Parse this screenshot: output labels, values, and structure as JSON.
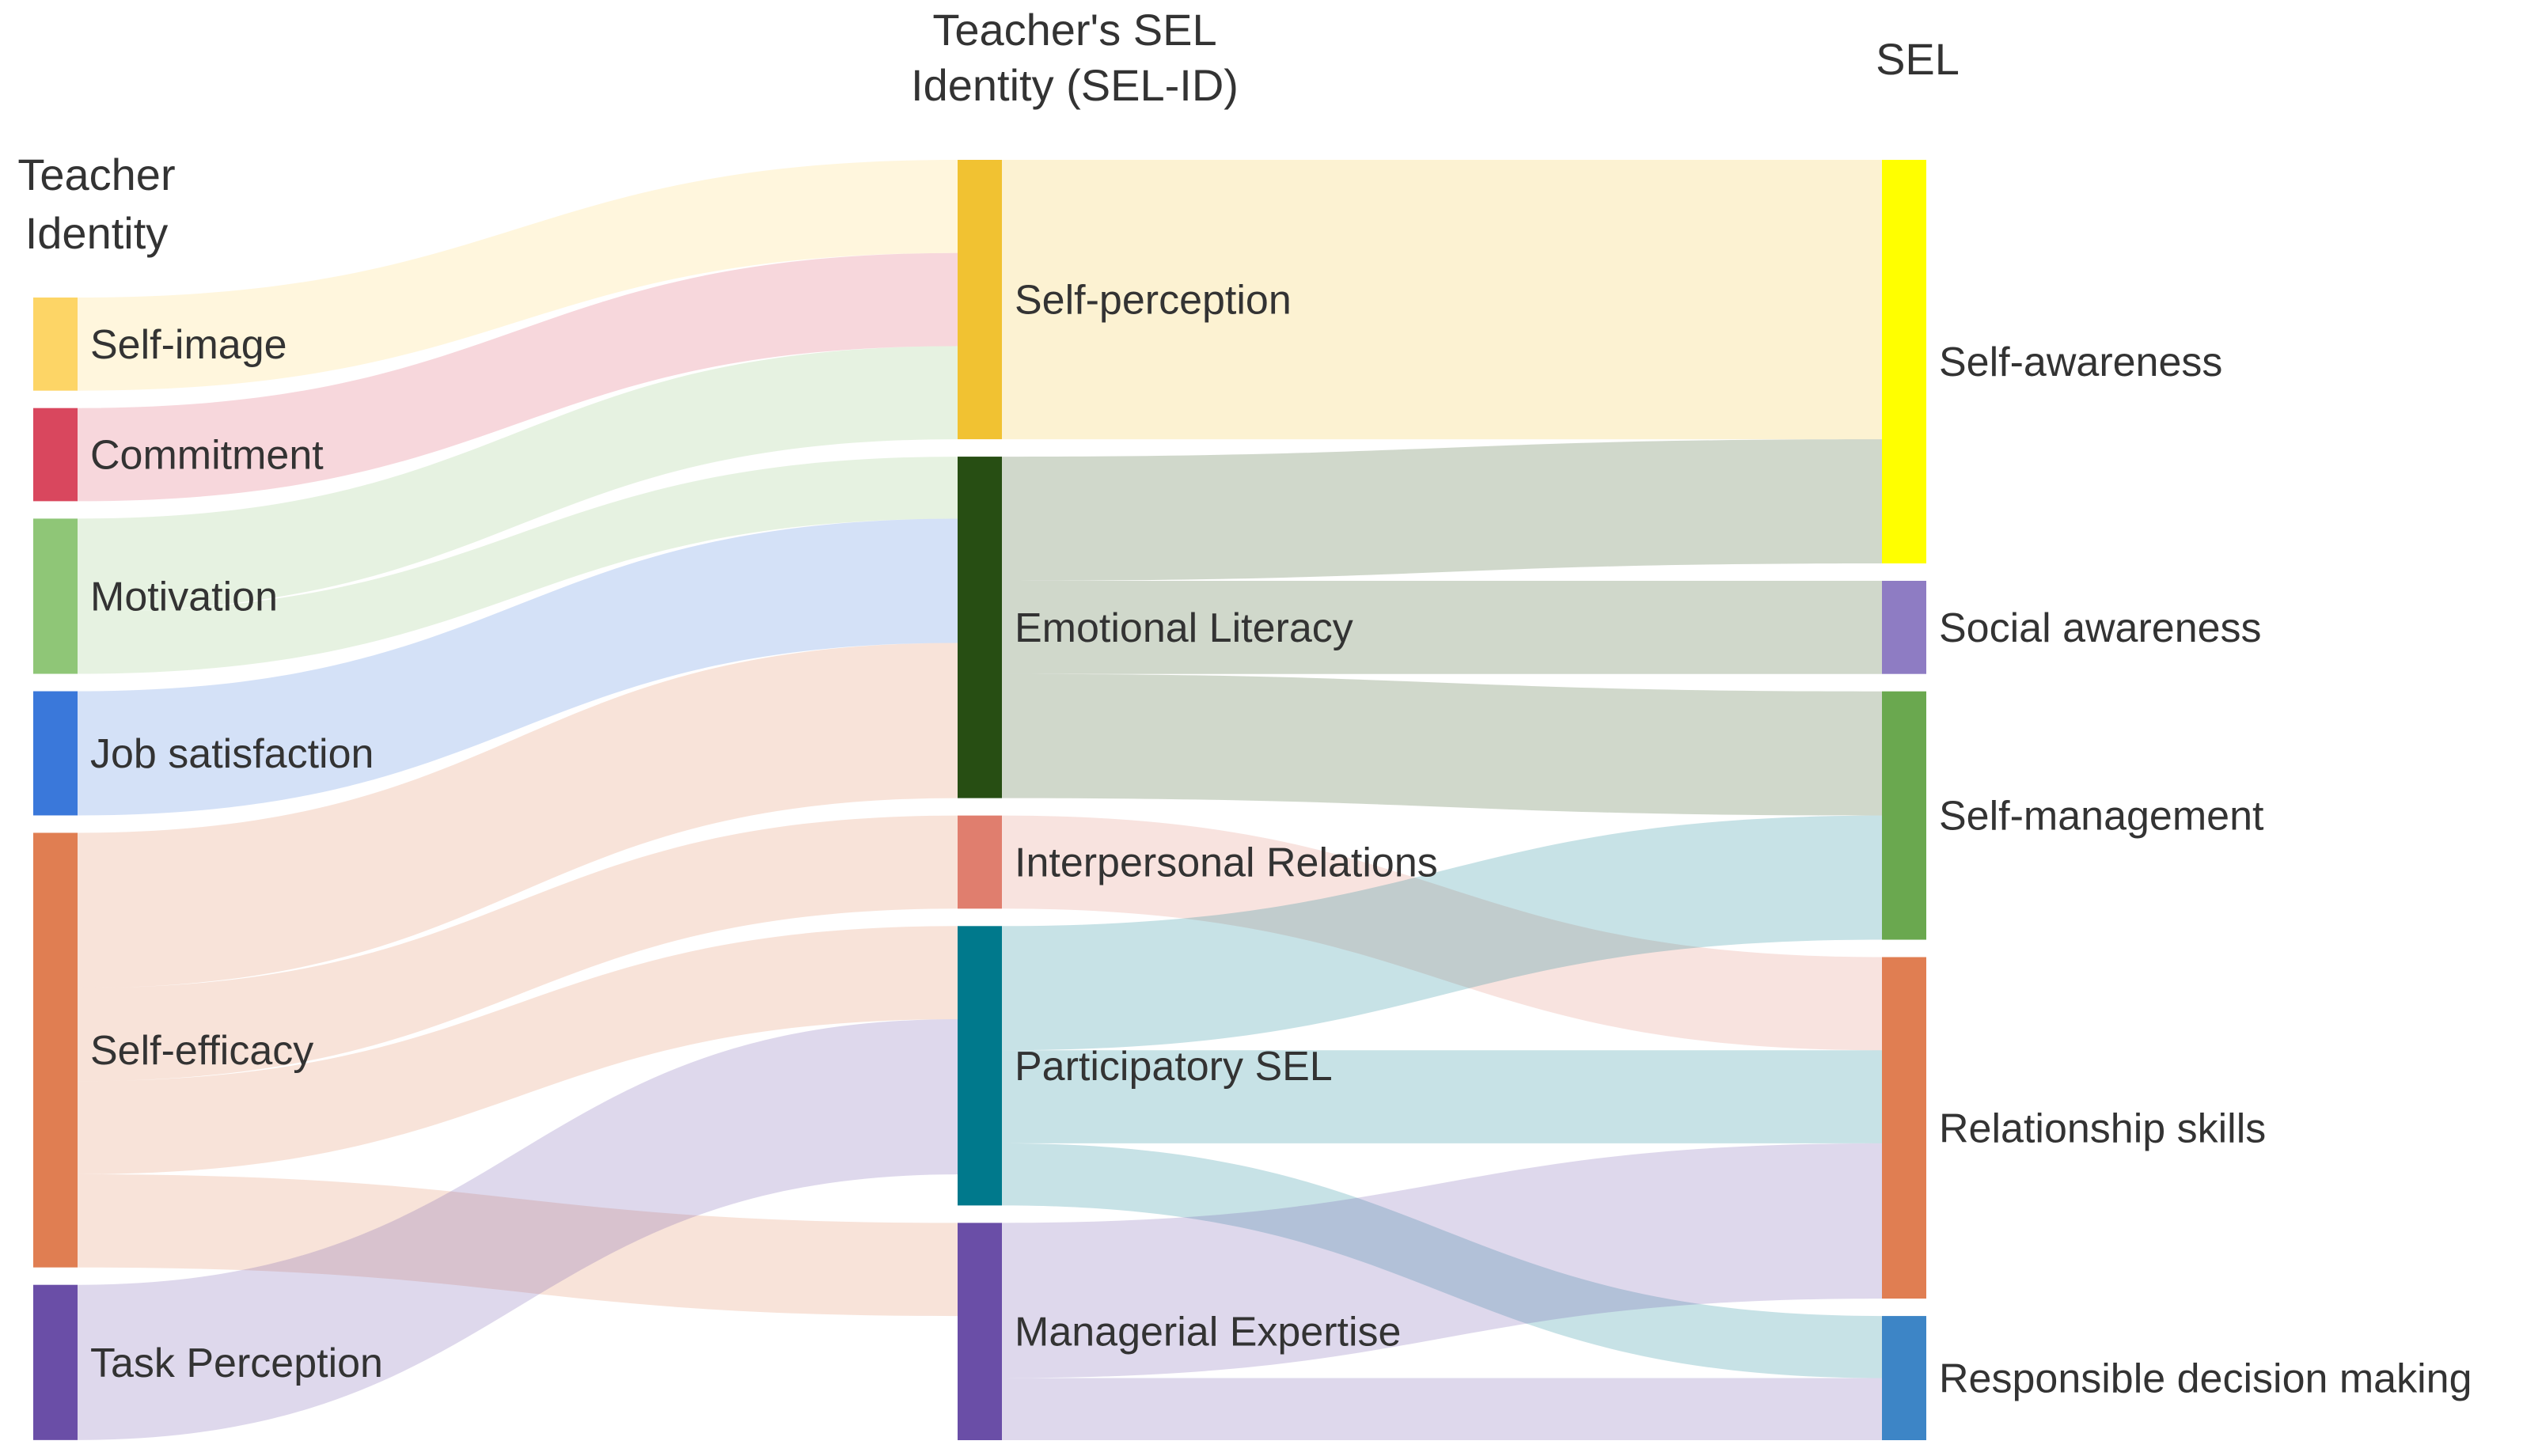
{
  "column_titles": {
    "left": [
      "Teacher",
      "Identity"
    ],
    "middle": [
      "Teacher's SEL",
      "Identity (SEL-ID)"
    ],
    "right": [
      "SEL"
    ]
  },
  "colors": {
    "self_image": "#FDD566",
    "commitment": "#D9475E",
    "motivation": "#8FC677",
    "job_satisfaction": "#3A78DA",
    "self_efficacy": "#E07E52",
    "task_perception": "#6A4EA7",
    "self_perception": "#F1C232",
    "emotional_literacy": "#274E13",
    "interpersonal_relations": "#E07E6E",
    "participatory_sel": "#00798C",
    "managerial_expertise": "#6A4EA7",
    "self_awareness": "#FFFF00",
    "social_awareness": "#8E7CC3",
    "self_management": "#6AA84F",
    "relationship_skills": "#E07E52",
    "responsible_decision_making": "#3D85C6"
  },
  "nodes": [
    {
      "id": "self_image",
      "label": "Self-image",
      "column": 0
    },
    {
      "id": "commitment",
      "label": "Commitment",
      "column": 0
    },
    {
      "id": "motivation",
      "label": "Motivation",
      "column": 0
    },
    {
      "id": "job_satisfaction",
      "label": "Job satisfaction",
      "column": 0
    },
    {
      "id": "self_efficacy",
      "label": "Self-efficacy",
      "column": 0
    },
    {
      "id": "task_perception",
      "label": "Task Perception",
      "column": 0
    },
    {
      "id": "self_perception",
      "label": "Self-perception",
      "column": 1
    },
    {
      "id": "emotional_literacy",
      "label": "Emotional Literacy",
      "column": 1
    },
    {
      "id": "interpersonal_relations",
      "label": "Interpersonal Relations",
      "column": 1
    },
    {
      "id": "participatory_sel",
      "label": "Participatory SEL",
      "column": 1
    },
    {
      "id": "managerial_expertise",
      "label": "Managerial Expertise",
      "column": 1
    },
    {
      "id": "self_awareness",
      "label": "Self-awareness",
      "column": 2
    },
    {
      "id": "social_awareness",
      "label": "Social awareness",
      "column": 2
    },
    {
      "id": "self_management",
      "label": "Self-management",
      "column": 2
    },
    {
      "id": "relationship_skills",
      "label": "Relationship skills",
      "column": 2
    },
    {
      "id": "responsible_decision_making",
      "label": "Responsible decision making",
      "column": 2
    }
  ],
  "links": [
    {
      "source": "self_image",
      "target": "self_perception",
      "value": 3
    },
    {
      "source": "commitment",
      "target": "self_perception",
      "value": 3
    },
    {
      "source": "motivation",
      "target": "self_perception",
      "value": 3
    },
    {
      "source": "motivation",
      "target": "emotional_literacy",
      "value": 2
    },
    {
      "source": "job_satisfaction",
      "target": "emotional_literacy",
      "value": 4
    },
    {
      "source": "self_efficacy",
      "target": "emotional_literacy",
      "value": 5
    },
    {
      "source": "self_efficacy",
      "target": "managerial_expertise",
      "value": 3
    },
    {
      "source": "self_efficacy",
      "target": "participatory_sel",
      "value": 3
    },
    {
      "source": "self_efficacy",
      "target": "interpersonal_relations",
      "value": 3
    },
    {
      "source": "task_perception",
      "target": "participatory_sel",
      "value": 5
    },
    {
      "source": "self_perception",
      "target": "self_awareness",
      "value": 9
    },
    {
      "source": "emotional_literacy",
      "target": "self_awareness",
      "value": 4
    },
    {
      "source": "emotional_literacy",
      "target": "social_awareness",
      "value": 3
    },
    {
      "source": "emotional_literacy",
      "target": "self_management",
      "value": 4
    },
    {
      "source": "interpersonal_relations",
      "target": "relationship_skills",
      "value": 3
    },
    {
      "source": "participatory_sel",
      "target": "self_management",
      "value": 4
    },
    {
      "source": "participatory_sel",
      "target": "relationship_skills",
      "value": 3
    },
    {
      "source": "participatory_sel",
      "target": "responsible_decision_making",
      "value": 2
    },
    {
      "source": "managerial_expertise",
      "target": "relationship_skills",
      "value": 5
    },
    {
      "source": "managerial_expertise",
      "target": "responsible_decision_making",
      "value": 2
    }
  ]
}
